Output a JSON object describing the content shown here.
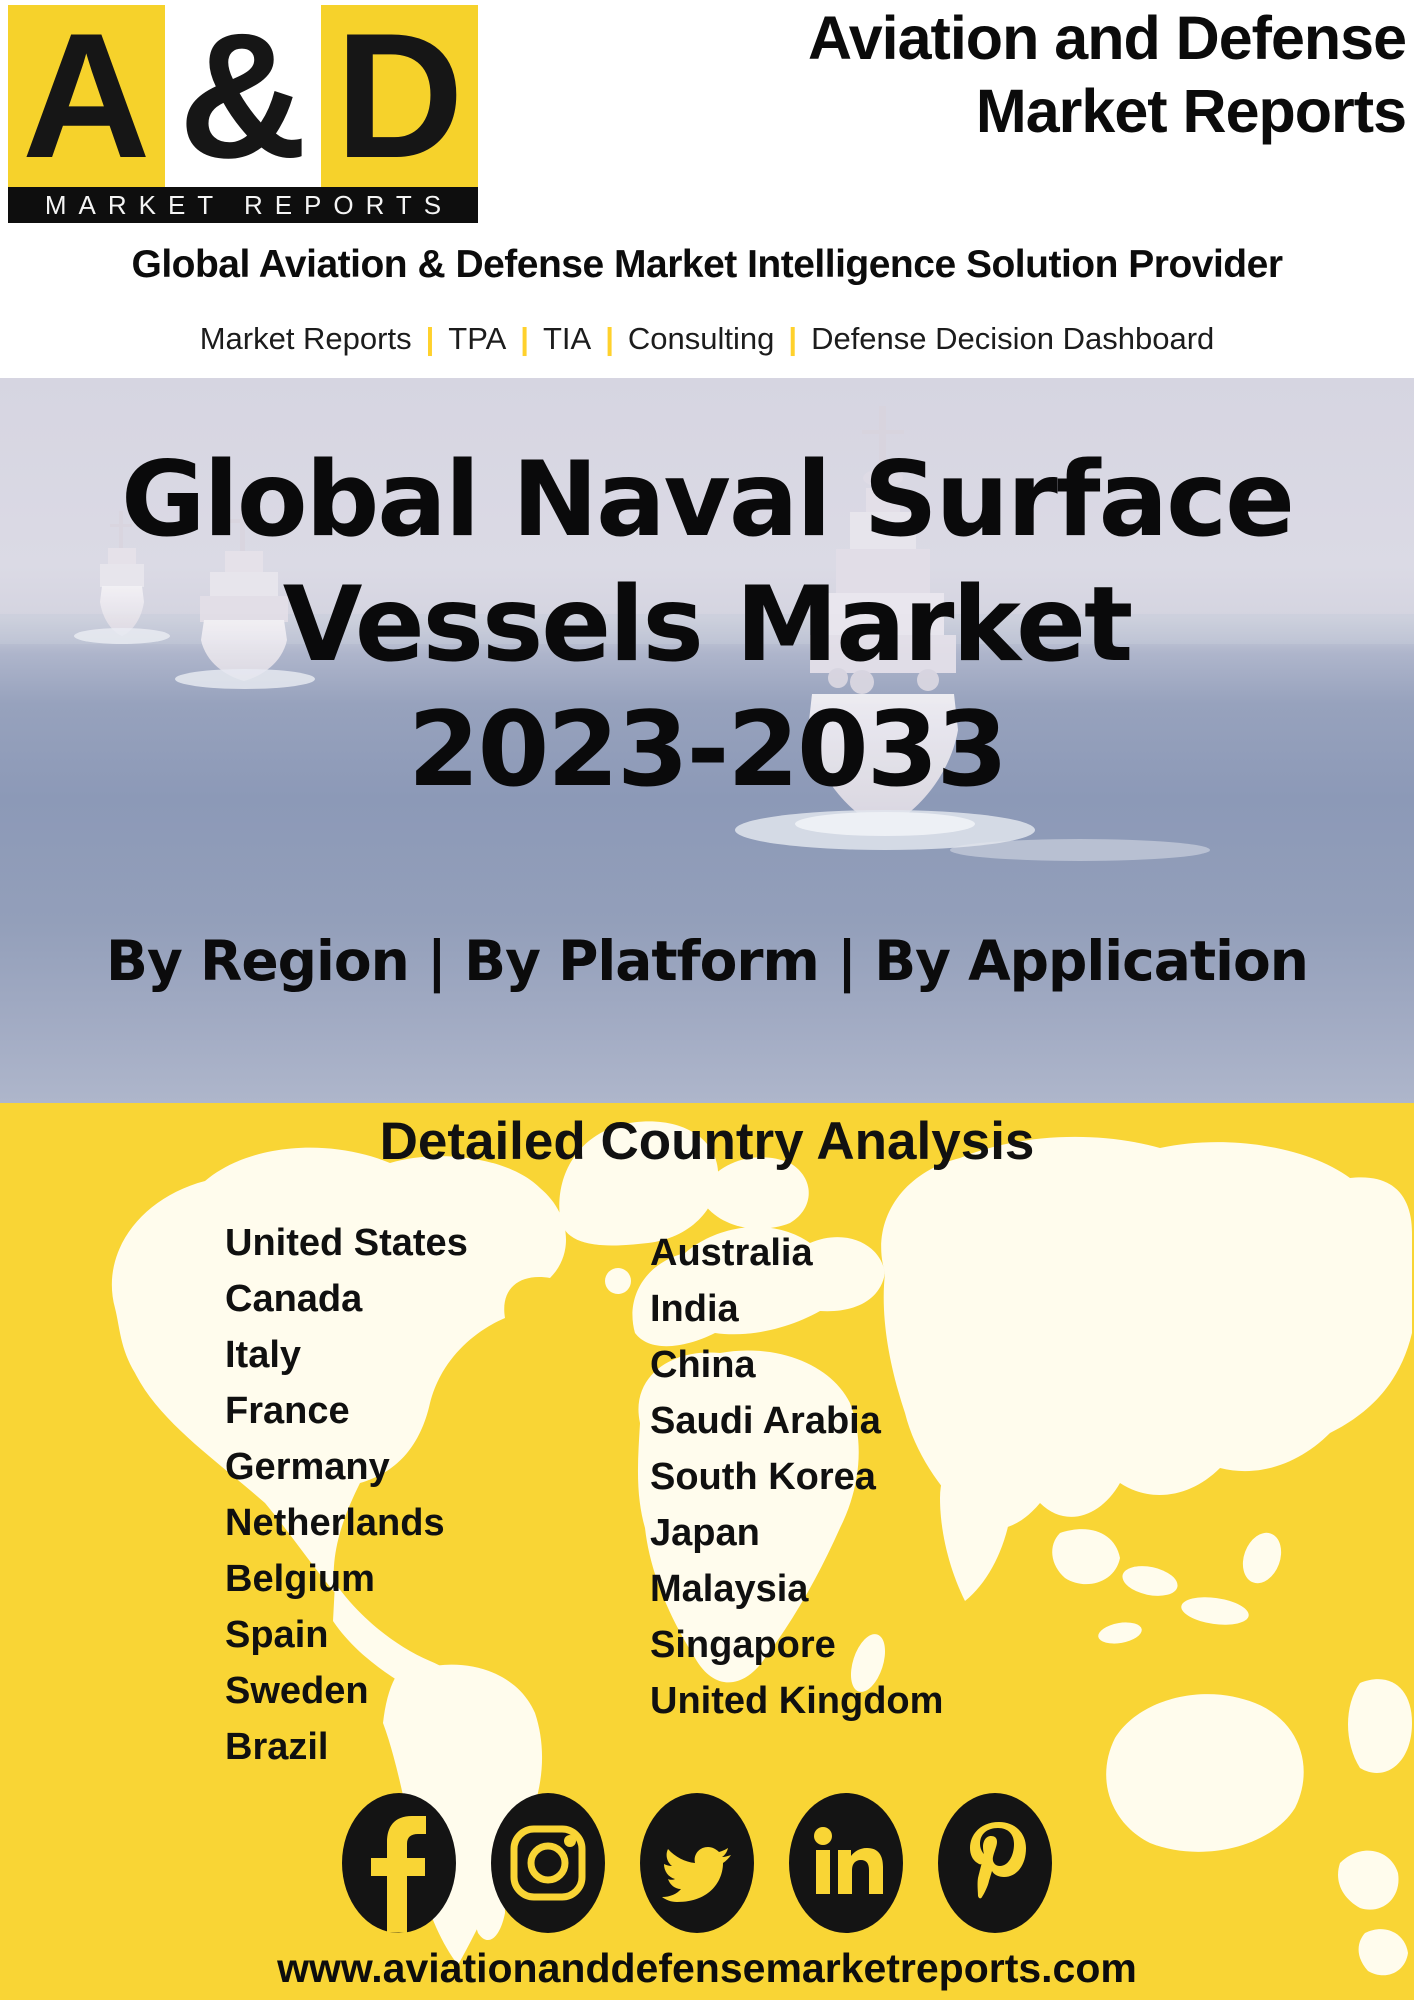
{
  "header": {
    "logo": {
      "letter_a": "A",
      "ampersand": "&",
      "letter_d": "D",
      "caption": "MARKET REPORTS"
    },
    "title_line1": "Aviation and Defense",
    "title_line2": "Market Reports",
    "tagline": "Global Aviation & Defense Market Intelligence Solution Provider",
    "nav_separator": "|",
    "nav_items": [
      "Market Reports",
      "TPA",
      "TIA",
      "Consulting",
      "Defense Decision Dashboard"
    ]
  },
  "hero": {
    "title_line1": "Global Naval Surface",
    "title_line2": "Vessels Market",
    "title_line3": "2023-2033",
    "segments": "By Region | By Platform | By Application"
  },
  "country_section": {
    "heading": "Detailed Country Analysis",
    "left_countries": [
      "United States",
      "Canada",
      "Italy",
      "France",
      "Germany",
      "Netherlands",
      "Belgium",
      "Spain",
      "Sweden",
      "Brazil"
    ],
    "right_countries": [
      "Australia",
      "India",
      "China",
      "Saudi Arabia",
      "South Korea",
      "Japan",
      "Malaysia",
      "Singapore",
      "United Kingdom"
    ]
  },
  "footer": {
    "social_icons": [
      "facebook-icon",
      "instagram-icon",
      "twitter-icon",
      "linkedin-icon",
      "pinterest-icon"
    ],
    "website": "www.aviationanddefensemarketreports.com"
  },
  "colors": {
    "brand_yellow": "#F6D22B",
    "section_yellow": "#F9D535",
    "pipe_yellow": "#FFD12C",
    "icon_black": "#141414",
    "sky": "#D8D7E3",
    "water": "#8E9BB8"
  }
}
